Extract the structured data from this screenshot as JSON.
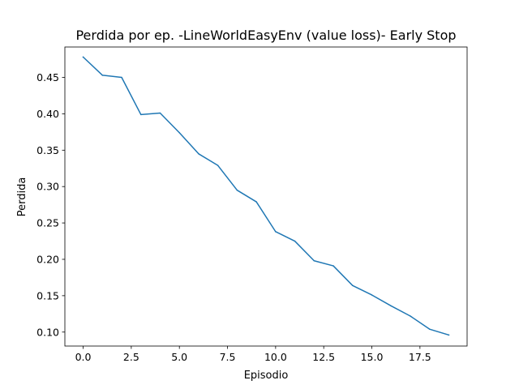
{
  "chart_data": {
    "type": "line",
    "title": "Perdida por ep. -LineWorldEasyEnv (value loss)- Early Stop",
    "xlabel": "Episodio",
    "ylabel": "Perdida",
    "xlim": [
      -0.95,
      19.95
    ],
    "ylim": [
      0.0808,
      0.4918
    ],
    "grid": false,
    "xticks": [
      0,
      2.5,
      5,
      7.5,
      10,
      12.5,
      15,
      17.5
    ],
    "xtick_labels": [
      "0.0",
      "2.5",
      "5.0",
      "7.5",
      "10.0",
      "12.5",
      "15.0",
      "17.5"
    ],
    "yticks": [
      0.1,
      0.15,
      0.2,
      0.25,
      0.3,
      0.35,
      0.4,
      0.45
    ],
    "ytick_labels": [
      "0.10",
      "0.15",
      "0.20",
      "0.25",
      "0.30",
      "0.35",
      "0.40",
      "0.45"
    ],
    "series": [
      {
        "color": "#1f77b4",
        "x": [
          0,
          1,
          2,
          3,
          4,
          5,
          6,
          7,
          8,
          9,
          10,
          11,
          12,
          13,
          14,
          15,
          16,
          17,
          18,
          19
        ],
        "y": [
          0.478,
          0.453,
          0.45,
          0.399,
          0.401,
          0.374,
          0.345,
          0.329,
          0.295,
          0.279,
          0.238,
          0.225,
          0.198,
          0.191,
          0.164,
          0.151,
          0.136,
          0.122,
          0.104,
          0.096
        ]
      }
    ]
  }
}
